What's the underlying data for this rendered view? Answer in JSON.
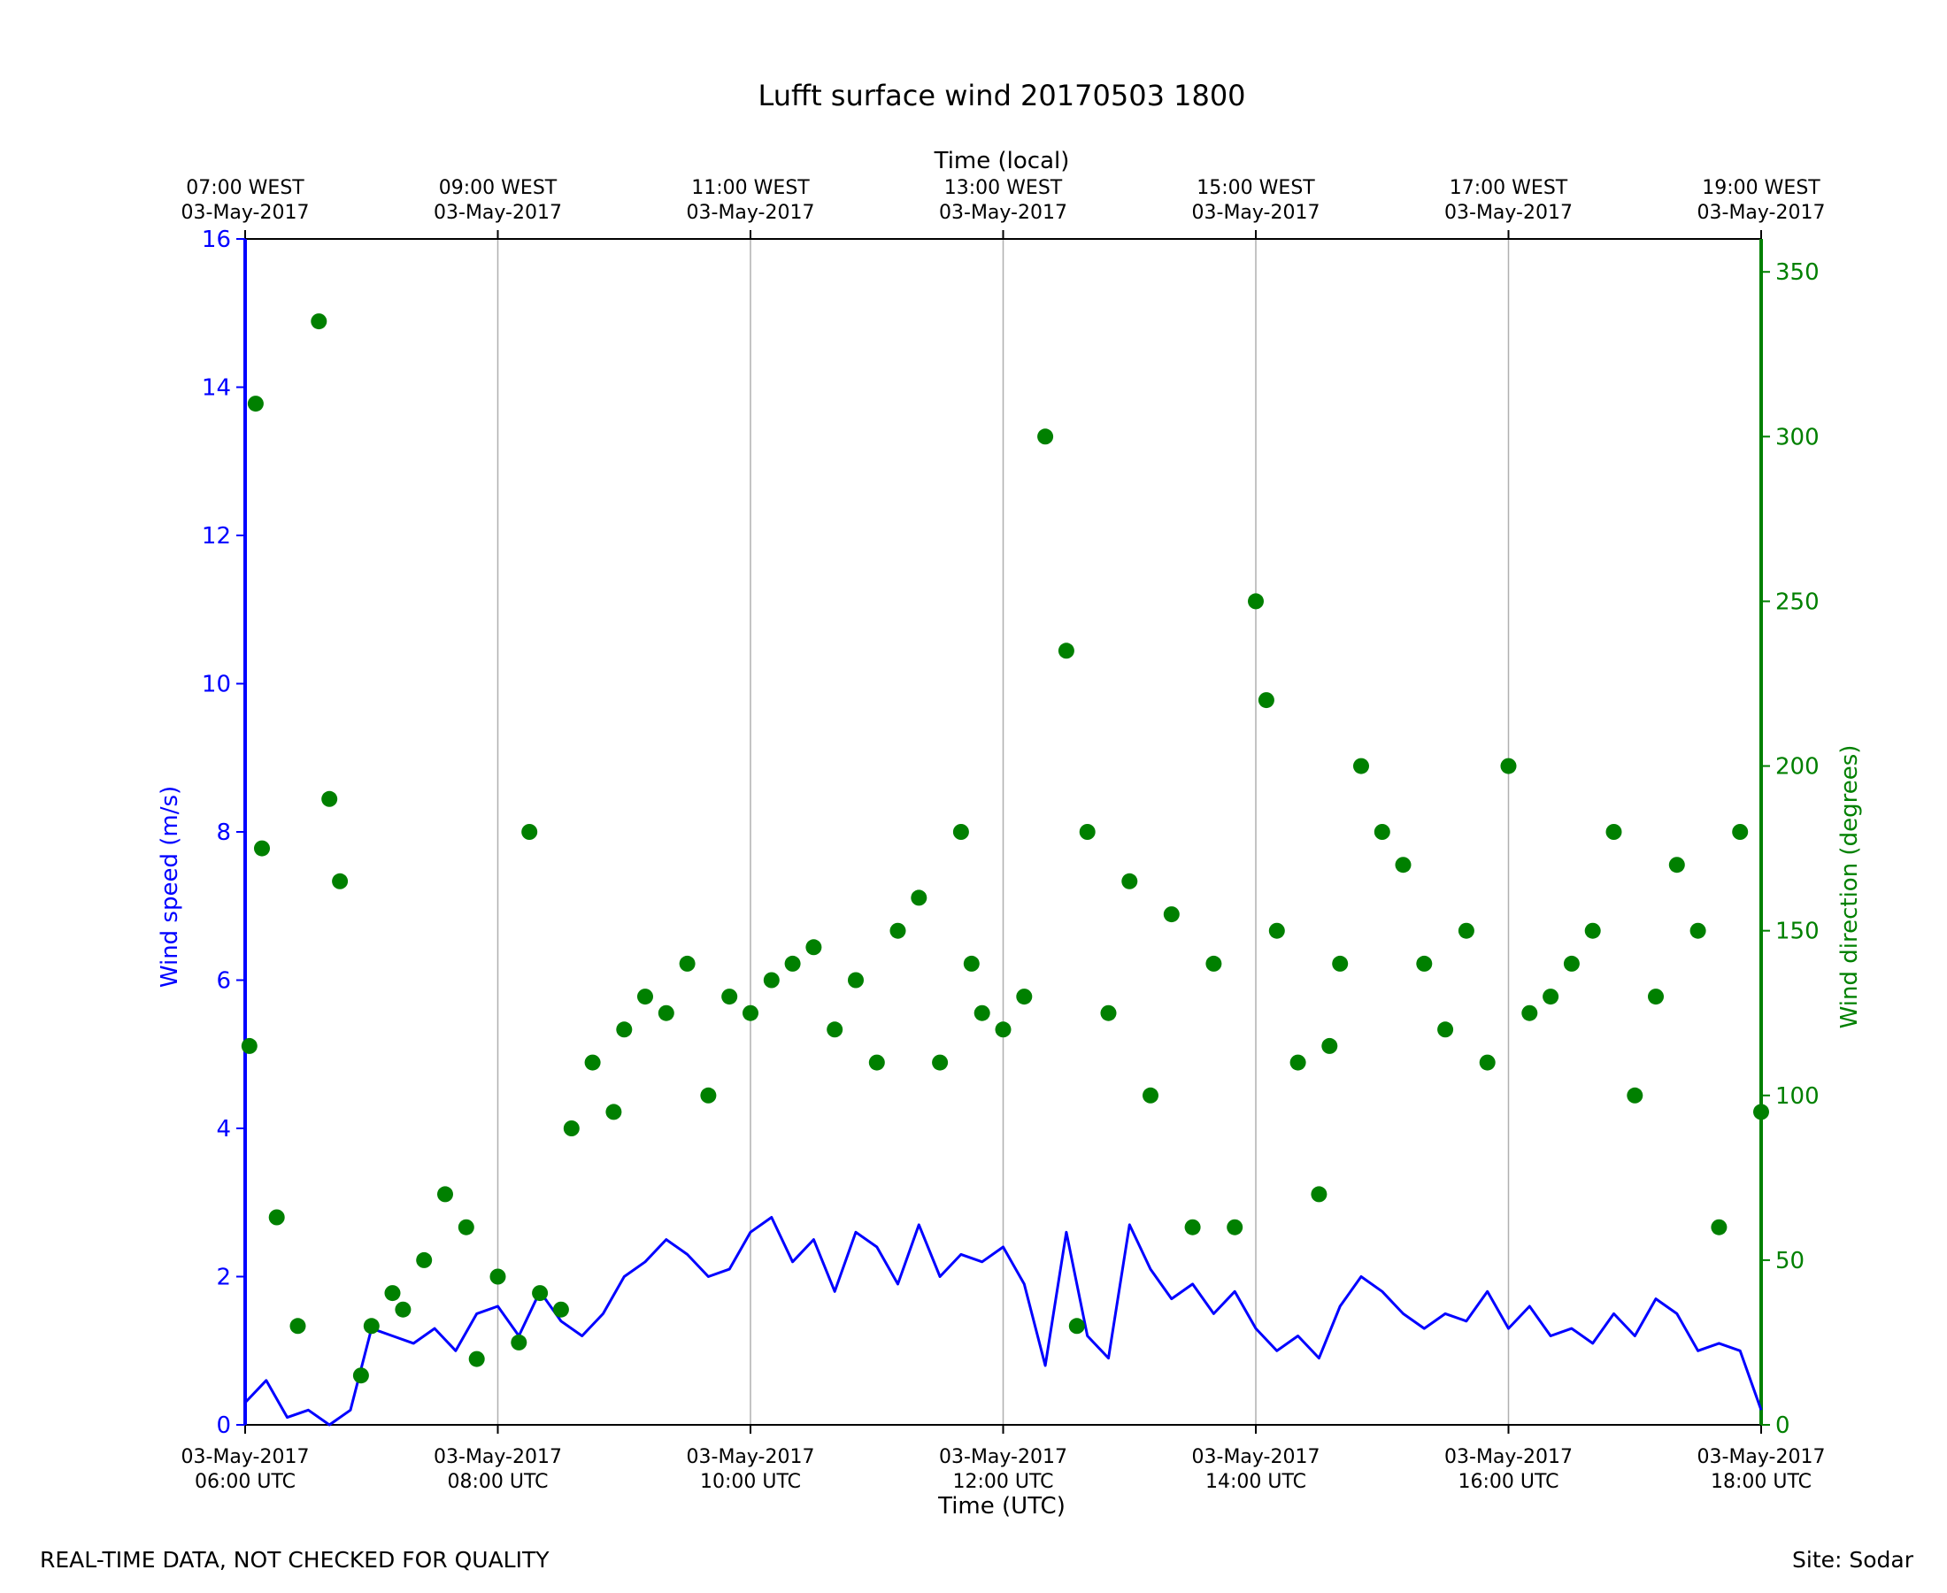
{
  "footer": {
    "disclaimer": "REAL-TIME DATA, NOT CHECKED FOR QUALITY",
    "site": "Site: Sodar"
  },
  "chart_data": {
    "type": "line",
    "title": "Lufft surface wind 20170503 1800",
    "xlabel": "Time (UTC)",
    "x2label": "Time (local)",
    "ylabel": "Wind speed (m/s)",
    "y2label": "Wind direction (degrees)",
    "xlim": [
      "2017-05-03T06:00Z",
      "2017-05-03T18:00Z"
    ],
    "ylim": [
      0,
      16
    ],
    "y2lim": [
      0,
      360
    ],
    "grid": "vertical lines at bottom ticks",
    "colors": {
      "speed": "#0000ff",
      "direction": "#008000"
    },
    "x_ticks_utc": [
      [
        "03-May-2017",
        "06:00 UTC"
      ],
      [
        "03-May-2017",
        "08:00 UTC"
      ],
      [
        "03-May-2017",
        "10:00 UTC"
      ],
      [
        "03-May-2017",
        "12:00 UTC"
      ],
      [
        "03-May-2017",
        "14:00 UTC"
      ],
      [
        "03-May-2017",
        "16:00 UTC"
      ],
      [
        "03-May-2017",
        "18:00 UTC"
      ]
    ],
    "x_ticks_local": [
      [
        "07:00 WEST",
        "03-May-2017"
      ],
      [
        "09:00 WEST",
        "03-May-2017"
      ],
      [
        "11:00 WEST",
        "03-May-2017"
      ],
      [
        "13:00 WEST",
        "03-May-2017"
      ],
      [
        "15:00 WEST",
        "03-May-2017"
      ],
      [
        "17:00 WEST",
        "03-May-2017"
      ],
      [
        "19:00 WEST",
        "03-May-2017"
      ]
    ],
    "y_ticks": [
      0,
      2,
      4,
      6,
      8,
      10,
      12,
      14,
      16
    ],
    "y2_ticks": [
      0,
      50,
      100,
      150,
      200,
      250,
      300,
      350
    ],
    "series": [
      {
        "id": "speed",
        "style": "line",
        "x": [
          "06:00",
          "06:10",
          "06:20",
          "06:30",
          "06:40",
          "06:50",
          "07:00",
          "07:10",
          "07:20",
          "07:30",
          "07:40",
          "07:50",
          "08:00",
          "08:10",
          "08:20",
          "08:30",
          "08:40",
          "08:50",
          "09:00",
          "09:10",
          "09:20",
          "09:30",
          "09:40",
          "09:50",
          "10:00",
          "10:10",
          "10:20",
          "10:30",
          "10:40",
          "10:50",
          "11:00",
          "11:10",
          "11:20",
          "11:30",
          "11:40",
          "11:50",
          "12:00",
          "12:10",
          "12:20",
          "12:30",
          "12:40",
          "12:50",
          "13:00",
          "13:10",
          "13:20",
          "13:30",
          "13:40",
          "13:50",
          "14:00",
          "14:10",
          "14:20",
          "14:30",
          "14:40",
          "14:50",
          "15:00",
          "15:10",
          "15:20",
          "15:30",
          "15:40",
          "15:50",
          "16:00",
          "16:10",
          "16:20",
          "16:30",
          "16:40",
          "16:50",
          "17:00",
          "17:10",
          "17:20",
          "17:30",
          "17:40",
          "17:50",
          "18:00"
        ],
        "y": [
          0.3,
          0.6,
          0.1,
          0.2,
          0.0,
          0.2,
          1.3,
          1.2,
          1.1,
          1.3,
          1.0,
          1.5,
          1.6,
          1.2,
          1.8,
          1.4,
          1.2,
          1.5,
          2.0,
          2.2,
          2.5,
          2.3,
          2.0,
          2.1,
          2.6,
          2.8,
          2.2,
          2.5,
          1.8,
          2.6,
          2.4,
          1.9,
          2.7,
          2.0,
          2.3,
          2.2,
          2.4,
          1.9,
          0.8,
          2.6,
          1.2,
          0.9,
          2.7,
          2.1,
          1.7,
          1.9,
          1.5,
          1.8,
          1.3,
          1.0,
          1.2,
          0.9,
          1.6,
          2.0,
          1.8,
          1.5,
          1.3,
          1.5,
          1.4,
          1.8,
          1.3,
          1.6,
          1.2,
          1.3,
          1.1,
          1.5,
          1.2,
          1.7,
          1.5,
          1.0,
          1.1,
          1.0,
          0.2
        ]
      },
      {
        "id": "direction",
        "style": "scatter",
        "x": [
          "06:02",
          "06:05",
          "06:08",
          "06:15",
          "06:25",
          "06:35",
          "06:40",
          "06:45",
          "06:55",
          "07:00",
          "07:10",
          "07:15",
          "07:25",
          "07:35",
          "07:45",
          "07:50",
          "08:00",
          "08:10",
          "08:15",
          "08:20",
          "08:30",
          "08:35",
          "08:45",
          "08:55",
          "09:00",
          "09:10",
          "09:20",
          "09:30",
          "09:40",
          "09:50",
          "10:00",
          "10:10",
          "10:20",
          "10:30",
          "10:40",
          "10:50",
          "11:00",
          "11:10",
          "11:20",
          "11:30",
          "11:40",
          "11:45",
          "11:50",
          "12:00",
          "12:10",
          "12:20",
          "12:30",
          "12:35",
          "12:40",
          "12:50",
          "13:00",
          "13:10",
          "13:20",
          "13:30",
          "13:40",
          "13:50",
          "14:00",
          "14:05",
          "14:10",
          "14:20",
          "14:30",
          "14:35",
          "14:40",
          "14:50",
          "15:00",
          "15:10",
          "15:20",
          "15:30",
          "15:40",
          "15:50",
          "16:00",
          "16:10",
          "16:20",
          "16:30",
          "16:40",
          "16:50",
          "17:00",
          "17:10",
          "17:20",
          "17:30",
          "17:40",
          "17:50",
          "18:00"
        ],
        "y": [
          115,
          310,
          175,
          63,
          30,
          335,
          190,
          165,
          15,
          30,
          40,
          35,
          50,
          70,
          60,
          20,
          45,
          25,
          180,
          40,
          35,
          90,
          110,
          95,
          120,
          130,
          125,
          140,
          100,
          130,
          125,
          135,
          140,
          145,
          120,
          135,
          110,
          150,
          160,
          110,
          180,
          140,
          125,
          120,
          130,
          300,
          235,
          30,
          180,
          125,
          165,
          100,
          155,
          60,
          140,
          60,
          250,
          220,
          150,
          110,
          70,
          115,
          140,
          200,
          180,
          170,
          140,
          120,
          150,
          110,
          200,
          125,
          130,
          140,
          150,
          180,
          100,
          130,
          170,
          150,
          60,
          180,
          95
        ]
      }
    ]
  }
}
